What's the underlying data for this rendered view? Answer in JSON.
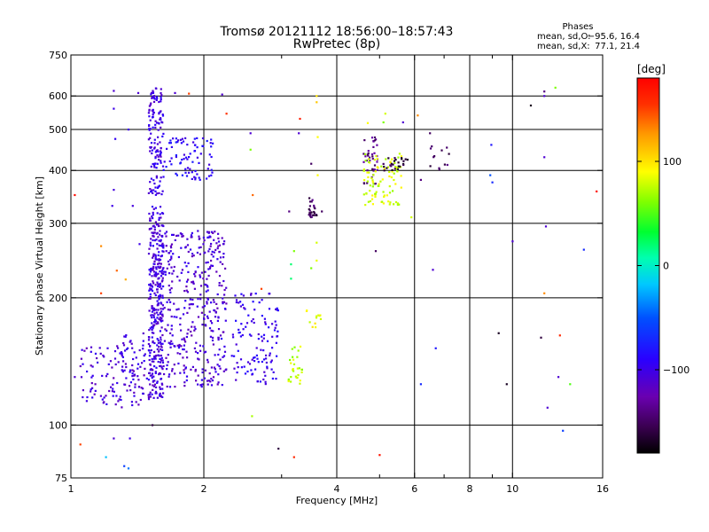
{
  "header": {
    "title_line1": "Tromsø 20121112 18:56:00–18:57:43",
    "title_line2": "RwPretec (8p)",
    "phases_heading": "Phases",
    "phases_o_label": "mean, sd,O:",
    "phases_o_values": "−95.6, 16.4",
    "phases_x_label": "mean, sd,X:",
    "phases_x_values": "77.1, 21.4"
  },
  "colorbar": {
    "label": "[deg]",
    "range": [
      -180,
      180
    ],
    "ticks": [
      {
        "value": 100,
        "label": "100"
      },
      {
        "value": 0,
        "label": "0"
      },
      {
        "value": -100,
        "label": "−100"
      }
    ]
  },
  "chart_data": {
    "type": "scatter",
    "title": "Tromsø 20121112 18:56:00–18:57:43",
    "subtitle": "RwPretec (8p)",
    "xlabel": "Frequency [MHz]",
    "ylabel": "Stationary phase Virtual Height [km]",
    "xscale": "log",
    "yscale": "log",
    "xlim": [
      1,
      16
    ],
    "ylim": [
      75,
      750
    ],
    "x_ticks": [
      {
        "value": 1,
        "label": "1"
      },
      {
        "value": 2,
        "label": "2"
      },
      {
        "value": 4,
        "label": "4"
      },
      {
        "value": 6,
        "label": "6"
      },
      {
        "value": 8,
        "label": "8"
      },
      {
        "value": 10,
        "label": "10"
      },
      {
        "value": 16,
        "label": "16"
      }
    ],
    "x_minor_ticks": [
      3,
      5,
      7,
      9
    ],
    "x_gridlines": [
      2,
      4,
      6,
      8,
      10
    ],
    "y_ticks": [
      {
        "value": 75,
        "label": "75"
      },
      {
        "value": 100,
        "label": "100"
      },
      {
        "value": 200,
        "label": "200"
      },
      {
        "value": 300,
        "label": "300"
      },
      {
        "value": 400,
        "label": "400"
      },
      {
        "value": 500,
        "label": "500"
      },
      {
        "value": 600,
        "label": "600"
      },
      {
        "value": 750,
        "label": "750"
      }
    ],
    "y_gridlines": [
      100,
      200,
      300,
      400,
      500,
      600
    ],
    "color_encoding": "phase [deg]",
    "clusters": [
      {
        "x": [
          1.5,
          1.62
        ],
        "y": [
          115,
          330
        ],
        "phase": -105,
        "count": 360
      },
      {
        "x": [
          1.5,
          1.62
        ],
        "y": [
          350,
          630
        ],
        "phase": -102,
        "count": 140
      },
      {
        "x": [
          1.62,
          2.25
        ],
        "y": [
          123,
          290
        ],
        "phase": -108,
        "count": 380
      },
      {
        "x": [
          1.62,
          2.1
        ],
        "y": [
          380,
          480
        ],
        "phase": -90,
        "count": 80
      },
      {
        "x": [
          1.05,
          1.5
        ],
        "y": [
          110,
          155
        ],
        "phase": -108,
        "count": 110
      },
      {
        "x": [
          1.3,
          1.48
        ],
        "y": [
          120,
          165
        ],
        "phase": -105,
        "count": 40
      },
      {
        "x": [
          2.3,
          2.95
        ],
        "y": [
          125,
          205
        ],
        "phase": -98,
        "count": 120
      },
      {
        "x": [
          3.1,
          3.35
        ],
        "y": [
          125,
          155
        ],
        "phase": 75,
        "count": 30
      },
      {
        "x": [
          3.4,
          3.75
        ],
        "y": [
          165,
          190
        ],
        "phase": 90,
        "count": 12
      },
      {
        "x": [
          3.45,
          3.6
        ],
        "y": [
          310,
          345
        ],
        "phase": -150,
        "count": 25
      },
      {
        "x": [
          4.6,
          4.95
        ],
        "y": [
          370,
          480
        ],
        "phase": -140,
        "count": 40
      },
      {
        "x": [
          4.6,
          5.6
        ],
        "y": [
          330,
          440
        ],
        "phase": 80,
        "count": 90
      },
      {
        "x": [
          5.1,
          5.9
        ],
        "y": [
          400,
          430
        ],
        "phase": -160,
        "count": 25
      },
      {
        "x": [
          6.5,
          7.2
        ],
        "y": [
          400,
          470
        ],
        "phase": -150,
        "count": 12
      }
    ],
    "points": [
      {
        "x": 1.02,
        "y": 350,
        "phase": 175
      },
      {
        "x": 1.25,
        "y": 617,
        "phase": -110
      },
      {
        "x": 1.25,
        "y": 560,
        "phase": -100
      },
      {
        "x": 1.26,
        "y": 475,
        "phase": -95
      },
      {
        "x": 1.25,
        "y": 360,
        "phase": -105
      },
      {
        "x": 1.24,
        "y": 330,
        "phase": -100
      },
      {
        "x": 1.17,
        "y": 265,
        "phase": 130
      },
      {
        "x": 1.17,
        "y": 205,
        "phase": 150
      },
      {
        "x": 1.27,
        "y": 232,
        "phase": 140
      },
      {
        "x": 1.43,
        "y": 268,
        "phase": -100
      },
      {
        "x": 1.42,
        "y": 610,
        "phase": -110
      },
      {
        "x": 1.35,
        "y": 500,
        "phase": -100
      },
      {
        "x": 1.38,
        "y": 330,
        "phase": -105
      },
      {
        "x": 1.33,
        "y": 221,
        "phase": 120
      },
      {
        "x": 1.25,
        "y": 93,
        "phase": -110
      },
      {
        "x": 1.36,
        "y": 93,
        "phase": -100
      },
      {
        "x": 1.2,
        "y": 84,
        "phase": -20
      },
      {
        "x": 1.32,
        "y": 80,
        "phase": -60
      },
      {
        "x": 1.35,
        "y": 79,
        "phase": -40
      },
      {
        "x": 1.53,
        "y": 100,
        "phase": -160
      },
      {
        "x": 1.05,
        "y": 90,
        "phase": 150
      },
      {
        "x": 1.02,
        "y": 130,
        "phase": -110
      },
      {
        "x": 1.85,
        "y": 608,
        "phase": 150
      },
      {
        "x": 1.72,
        "y": 610,
        "phase": -110
      },
      {
        "x": 2.2,
        "y": 605,
        "phase": -110
      },
      {
        "x": 2.25,
        "y": 545,
        "phase": 155
      },
      {
        "x": 2.55,
        "y": 490,
        "phase": -110
      },
      {
        "x": 2.55,
        "y": 448,
        "phase": 60
      },
      {
        "x": 2.58,
        "y": 350,
        "phase": 140
      },
      {
        "x": 2.57,
        "y": 105,
        "phase": 70
      },
      {
        "x": 2.7,
        "y": 210,
        "phase": 150
      },
      {
        "x": 2.95,
        "y": 88,
        "phase": -160
      },
      {
        "x": 3.2,
        "y": 258,
        "phase": 60
      },
      {
        "x": 3.15,
        "y": 240,
        "phase": 20
      },
      {
        "x": 3.15,
        "y": 222,
        "phase": 20
      },
      {
        "x": 3.2,
        "y": 84,
        "phase": 160
      },
      {
        "x": 3.12,
        "y": 320,
        "phase": -140
      },
      {
        "x": 3.3,
        "y": 530,
        "phase": 165
      },
      {
        "x": 3.28,
        "y": 490,
        "phase": -110
      },
      {
        "x": 3.5,
        "y": 415,
        "phase": -150
      },
      {
        "x": 3.6,
        "y": 600,
        "phase": 100
      },
      {
        "x": 3.6,
        "y": 580,
        "phase": 110
      },
      {
        "x": 3.62,
        "y": 480,
        "phase": 90
      },
      {
        "x": 3.62,
        "y": 390,
        "phase": 90
      },
      {
        "x": 3.6,
        "y": 270,
        "phase": 80
      },
      {
        "x": 3.6,
        "y": 245,
        "phase": 85
      },
      {
        "x": 3.5,
        "y": 235,
        "phase": 60
      },
      {
        "x": 3.7,
        "y": 320,
        "phase": -150
      },
      {
        "x": 4.7,
        "y": 518,
        "phase": 90
      },
      {
        "x": 5.15,
        "y": 545,
        "phase": 80
      },
      {
        "x": 5.1,
        "y": 520,
        "phase": 60
      },
      {
        "x": 4.9,
        "y": 258,
        "phase": -150
      },
      {
        "x": 5.0,
        "y": 85,
        "phase": 170
      },
      {
        "x": 5.65,
        "y": 520,
        "phase": -110
      },
      {
        "x": 6.1,
        "y": 540,
        "phase": 130
      },
      {
        "x": 6.2,
        "y": 380,
        "phase": -140
      },
      {
        "x": 5.9,
        "y": 310,
        "phase": 80
      },
      {
        "x": 6.5,
        "y": 490,
        "phase": -150
      },
      {
        "x": 6.6,
        "y": 233,
        "phase": -110
      },
      {
        "x": 6.7,
        "y": 152,
        "phase": -80
      },
      {
        "x": 6.2,
        "y": 125,
        "phase": -70
      },
      {
        "x": 8.95,
        "y": 460,
        "phase": -80
      },
      {
        "x": 8.9,
        "y": 390,
        "phase": -50
      },
      {
        "x": 9.0,
        "y": 375,
        "phase": -70
      },
      {
        "x": 9.3,
        "y": 165,
        "phase": -170
      },
      {
        "x": 9.7,
        "y": 125,
        "phase": -170
      },
      {
        "x": 10.0,
        "y": 272,
        "phase": -110
      },
      {
        "x": 11.0,
        "y": 570,
        "phase": -170
      },
      {
        "x": 11.8,
        "y": 615,
        "phase": -140
      },
      {
        "x": 11.8,
        "y": 600,
        "phase": -110
      },
      {
        "x": 11.8,
        "y": 430,
        "phase": -110
      },
      {
        "x": 11.9,
        "y": 295,
        "phase": -110
      },
      {
        "x": 11.8,
        "y": 205,
        "phase": 130
      },
      {
        "x": 11.6,
        "y": 161,
        "phase": -160
      },
      {
        "x": 12.0,
        "y": 110,
        "phase": -110
      },
      {
        "x": 12.5,
        "y": 628,
        "phase": 60
      },
      {
        "x": 12.8,
        "y": 163,
        "phase": 160
      },
      {
        "x": 12.7,
        "y": 130,
        "phase": -110
      },
      {
        "x": 13.0,
        "y": 97,
        "phase": -60
      },
      {
        "x": 13.5,
        "y": 125,
        "phase": 50
      },
      {
        "x": 14.5,
        "y": 260,
        "phase": -70
      },
      {
        "x": 15.5,
        "y": 357,
        "phase": 175
      }
    ]
  }
}
